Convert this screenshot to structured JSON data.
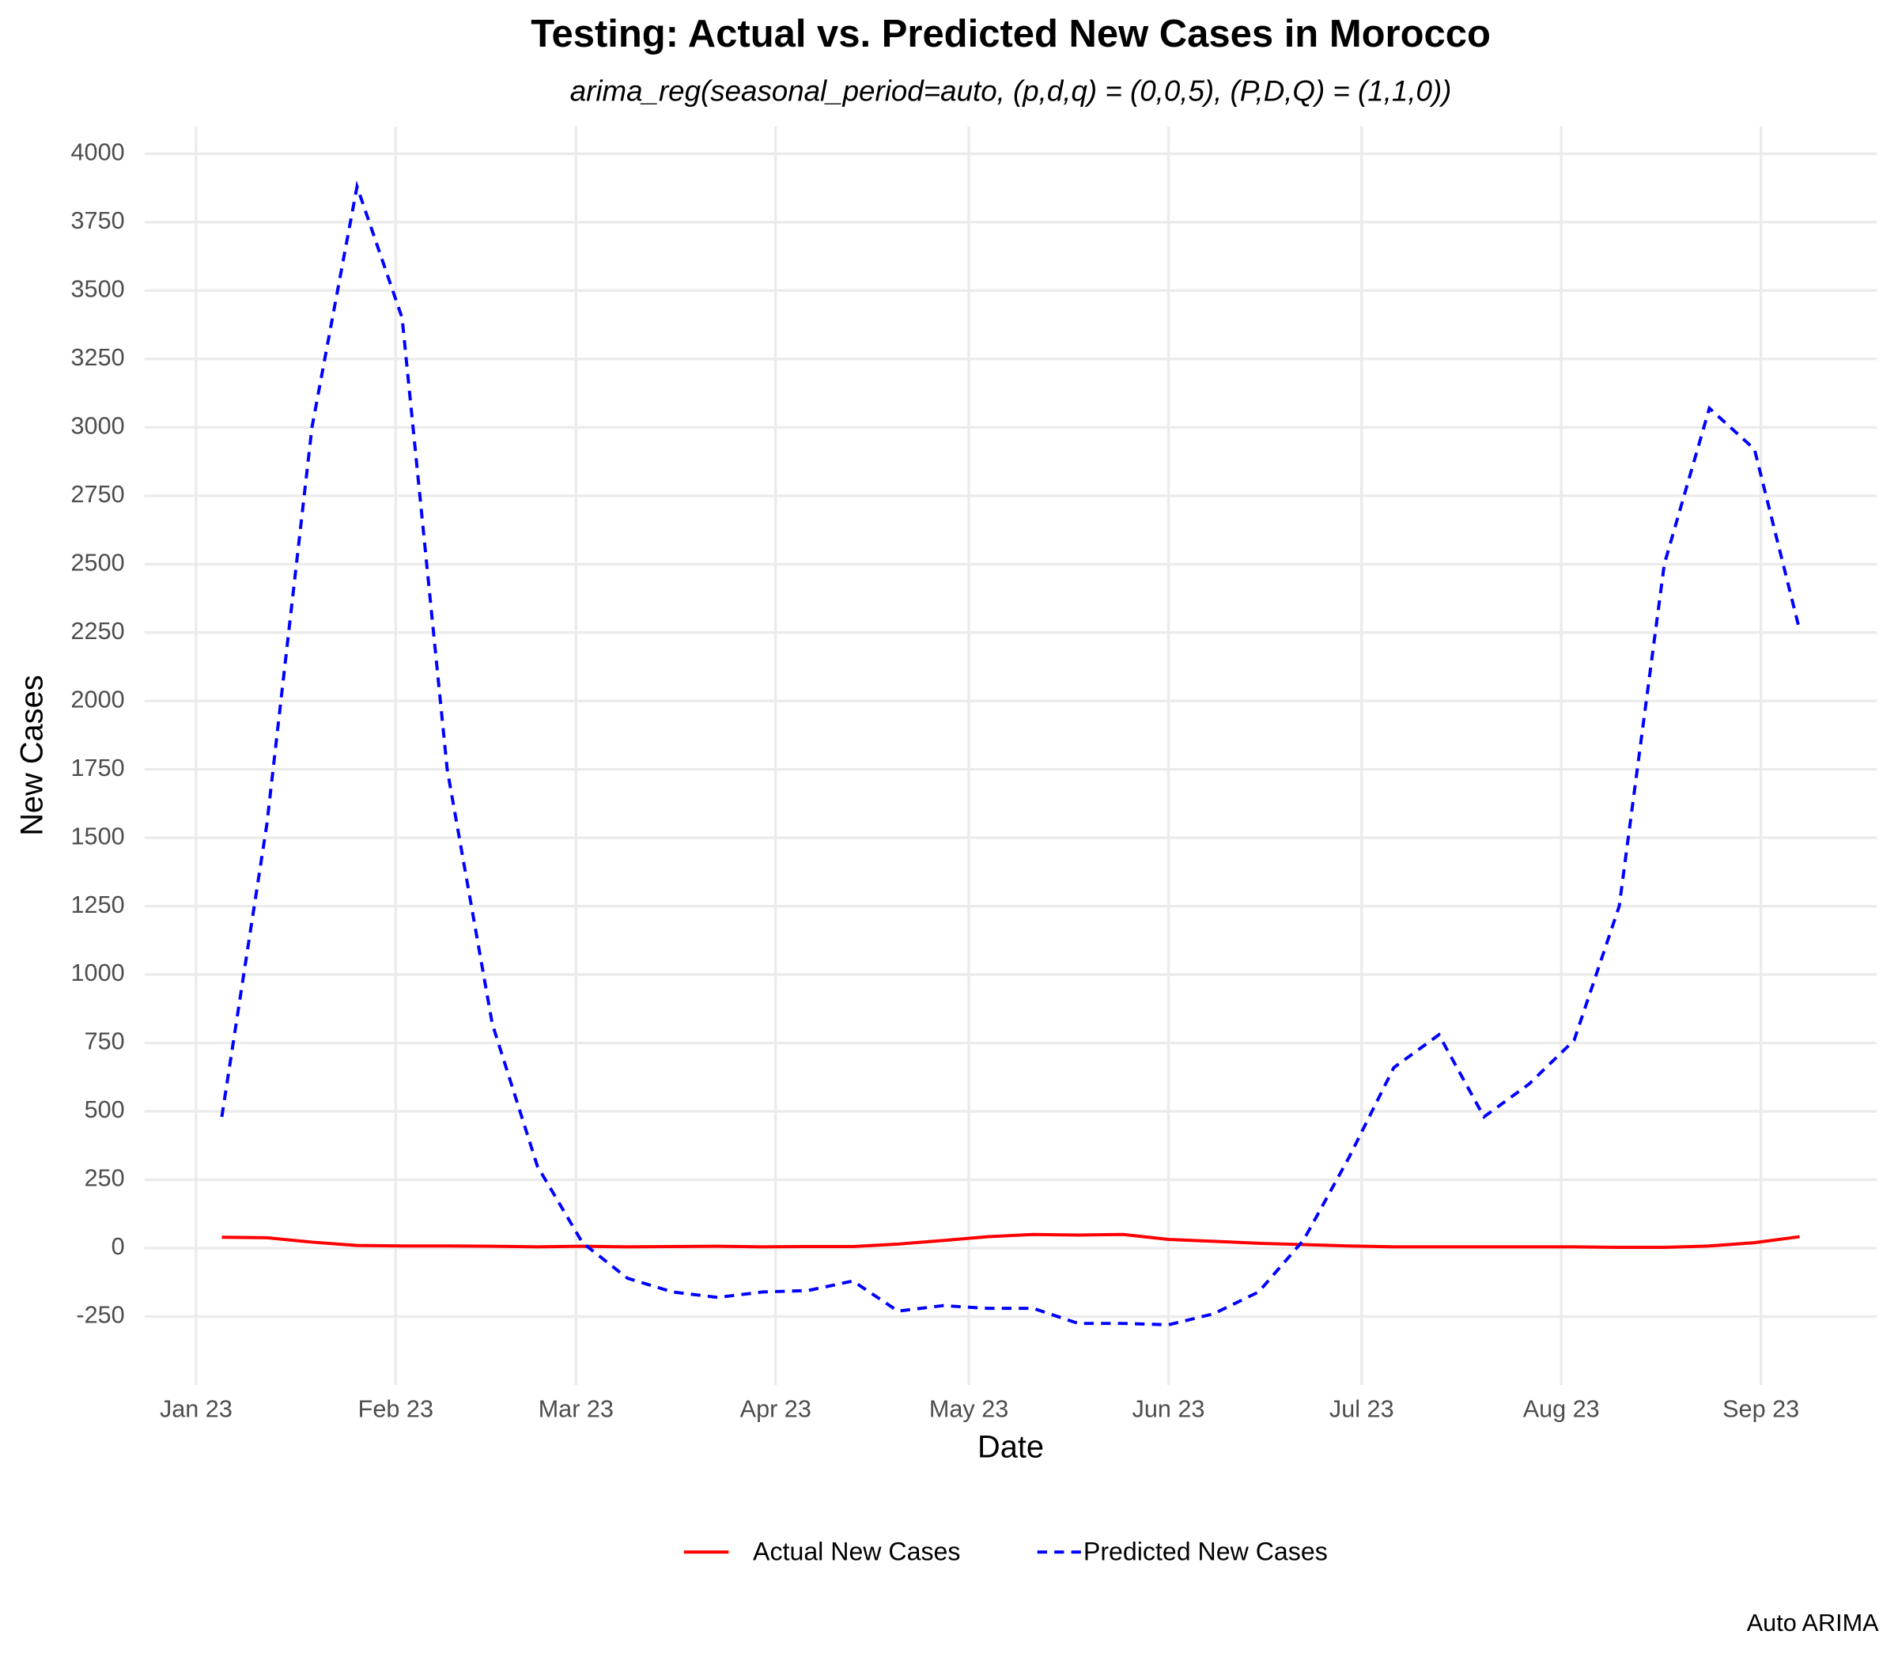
{
  "chart_data": {
    "type": "line",
    "title": "Testing: Actual vs. Predicted New Cases in Morocco",
    "subtitle": "arima_reg(seasonal_period=auto, (p,d,q) = (0,0,5), (P,D,Q) = (1,1,0))",
    "x_label": "Date",
    "y_label": "New Cases",
    "caption": "Auto ARIMA",
    "grid": true,
    "legend": "bottom",
    "x": [
      4,
      11,
      18,
      25,
      32,
      39,
      46,
      53,
      60,
      67,
      74,
      81,
      88,
      95,
      102,
      109,
      116,
      123,
      130,
      137,
      144,
      151,
      158,
      165,
      172,
      179,
      186,
      193,
      200,
      207,
      214,
      221,
      228,
      235,
      242,
      249
    ],
    "xlim": [
      -8,
      261
    ],
    "xticks": [
      {
        "value": 0,
        "label": "Jan 23"
      },
      {
        "value": 31,
        "label": "Feb 23"
      },
      {
        "value": 59,
        "label": "Mar 23"
      },
      {
        "value": 90,
        "label": "Apr 23"
      },
      {
        "value": 120,
        "label": "May 23"
      },
      {
        "value": 151,
        "label": "Jun 23"
      },
      {
        "value": 181,
        "label": "Jul 23"
      },
      {
        "value": 212,
        "label": "Aug 23"
      },
      {
        "value": 243,
        "label": "Sep 23"
      }
    ],
    "ylim": [
      -500,
      4100
    ],
    "yticks": [
      -250,
      0,
      250,
      500,
      750,
      1000,
      1250,
      1500,
      1750,
      2000,
      2250,
      2500,
      2750,
      3000,
      3250,
      3500,
      3750,
      4000
    ],
    "series": [
      {
        "name": "Actual New Cases",
        "color": "#ff0000",
        "line_style": "solid",
        "values": [
          40,
          38,
          22,
          10,
          8,
          8,
          7,
          5,
          7,
          5,
          6,
          7,
          5,
          6,
          6,
          15,
          28,
          42,
          50,
          48,
          50,
          32,
          25,
          18,
          13,
          8,
          5,
          5,
          5,
          5,
          5,
          3,
          3,
          8,
          20,
          42
        ]
      },
      {
        "name": "Predicted New Cases",
        "color": "#0000ff",
        "line_style": "dashed",
        "values": [
          480,
          1550,
          3000,
          3880,
          3400,
          1750,
          820,
          300,
          20,
          -110,
          -160,
          -180,
          -160,
          -155,
          -120,
          -230,
          -210,
          -220,
          -220,
          -275,
          -275,
          -280,
          -240,
          -160,
          30,
          330,
          660,
          780,
          480,
          600,
          760,
          1250,
          2500,
          3070,
          2920,
          2260
        ]
      }
    ]
  }
}
